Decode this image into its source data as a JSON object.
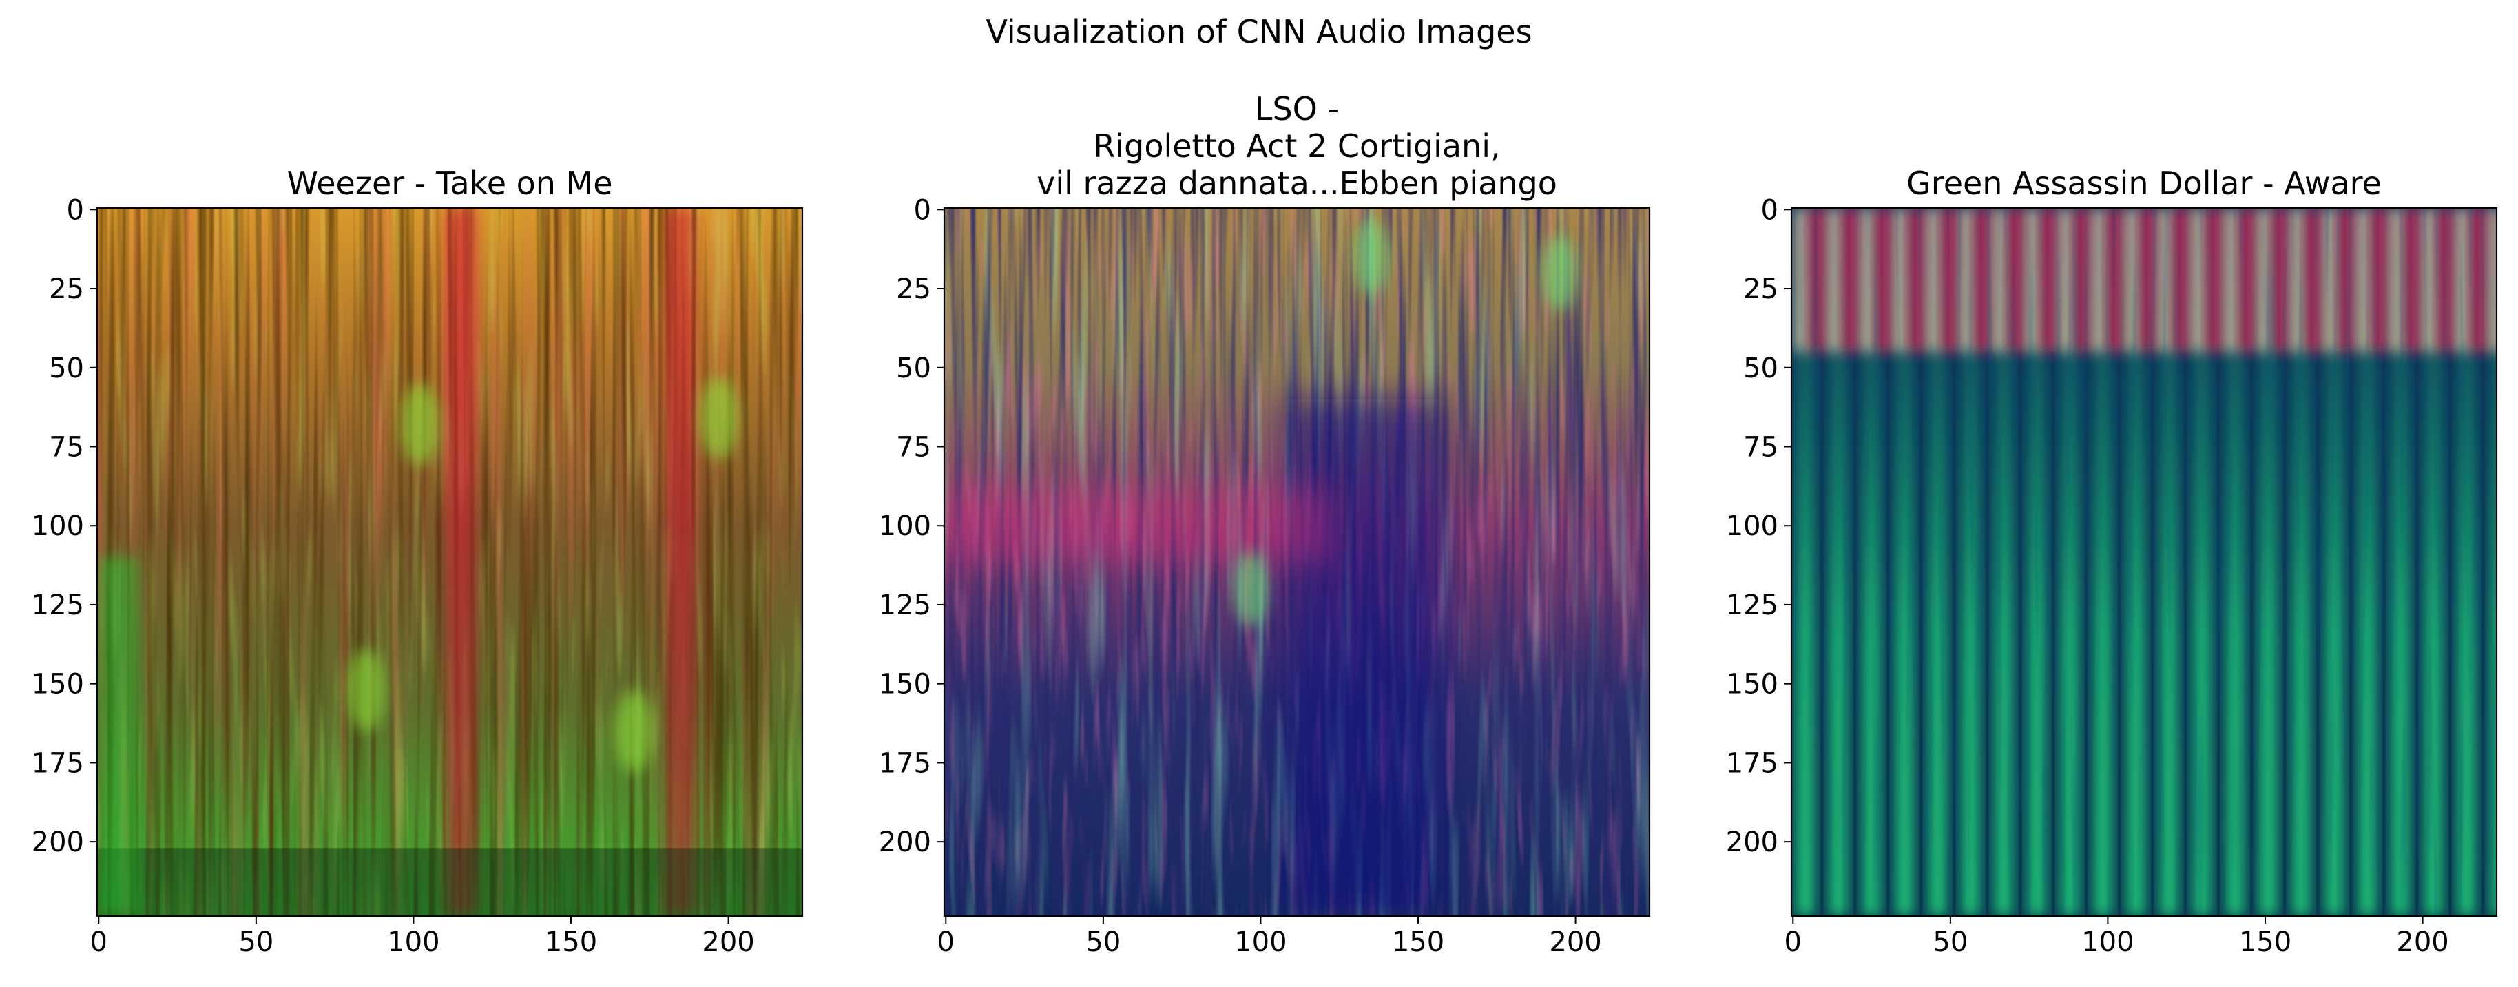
{
  "figure": {
    "suptitle": "Visualization of CNN Audio Images"
  },
  "chart_data": [
    {
      "type": "heatmap",
      "title": "Weezer - Take on Me",
      "xlabel": "",
      "ylabel": "",
      "xlim": [
        0,
        223
      ],
      "ylim": [
        223,
        0
      ],
      "x_ticks": [
        0,
        50,
        100,
        150,
        200
      ],
      "y_ticks": [
        0,
        25,
        50,
        75,
        100,
        125,
        150,
        175,
        200
      ],
      "grid": false,
      "image": {
        "encoding": "RGB composite spectrogram",
        "base_top": "#d78f2a",
        "base_mid": "#8a5a2a",
        "base_bottom": "#3fb82f",
        "dark_band_from_row": 202,
        "red_bands_at_x": [
          115,
          185
        ],
        "green_blobs": [
          {
            "x": 102,
            "y": 68
          },
          {
            "x": 197,
            "y": 66
          },
          {
            "x": 85,
            "y": 152
          },
          {
            "x": 170,
            "y": 165
          }
        ]
      }
    },
    {
      "type": "heatmap",
      "title": "LSO -\nRigoletto  Act 2 Cortigiani,\nvil razza dannata...Ebben piango",
      "xlabel": "",
      "ylabel": "",
      "xlim": [
        0,
        223
      ],
      "ylim": [
        223,
        0
      ],
      "x_ticks": [
        0,
        50,
        100,
        150,
        200
      ],
      "y_ticks": [
        0,
        25,
        50,
        75,
        100,
        125,
        150,
        175,
        200
      ],
      "grid": false,
      "image": {
        "encoding": "RGB composite spectrogram",
        "base_top": "#a08a4a",
        "base_mid": "#8a3a6a",
        "base_bottom": "#1a2a6a",
        "dark_blue_region_x": [
          108,
          158
        ],
        "green_blobs": [
          {
            "x": 135,
            "y": 15
          },
          {
            "x": 97,
            "y": 120
          },
          {
            "x": 195,
            "y": 20
          }
        ]
      }
    },
    {
      "type": "heatmap",
      "title": "Green Assassin Dollar - Aware",
      "xlabel": "",
      "ylabel": "",
      "xlim": [
        0,
        223
      ],
      "ylim": [
        223,
        0
      ],
      "x_ticks": [
        0,
        50,
        100,
        150,
        200
      ],
      "y_ticks": [
        0,
        25,
        50,
        75,
        100,
        125,
        150,
        175,
        200
      ],
      "grid": false,
      "image": {
        "encoding": "RGB composite spectrogram",
        "beat_period_columns": 10.5,
        "top_band_rows": [
          0,
          45
        ],
        "top_stripe_colors": [
          "#e8c8a0",
          "#d0184a"
        ],
        "lower_colors": [
          "#0a2a5a",
          "#1fd07a"
        ]
      }
    }
  ]
}
